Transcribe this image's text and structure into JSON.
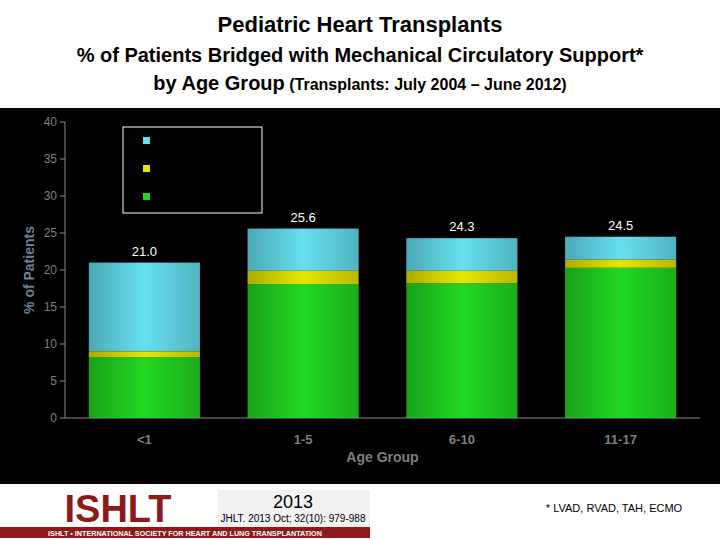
{
  "chart_data": {
    "type": "bar",
    "stacked": true,
    "title": "Pediatric Heart Transplants",
    "subtitle": [
      "% of Patients Bridged with Mechanical Circulatory Support*",
      "by Age Group",
      "(Transplants: July 2004 – June 2012)"
    ],
    "x_label": "Age Group",
    "y_label": "% of Patients",
    "categories": [
      "<1",
      "1-5",
      "6-10",
      "11-17"
    ],
    "series": [
      {
        "color": "#22d822",
        "values": [
          8.2,
          18.1,
          18.2,
          20.3
        ]
      },
      {
        "color": "#e6e600",
        "values": [
          0.8,
          1.8,
          1.7,
          1.1
        ]
      },
      {
        "color": "#66e0f0",
        "values": [
          12.0,
          5.7,
          4.4,
          3.1
        ]
      }
    ],
    "totals": [
      21.0,
      25.6,
      24.3,
      24.5
    ],
    "total_labels": [
      "21.0",
      "25.6",
      "24.3",
      "24.5"
    ],
    "ylim": [
      0,
      40
    ],
    "yticks": [
      0,
      5,
      10,
      15,
      20,
      25,
      30,
      35,
      40
    ],
    "grid": false,
    "legend": "upper-left"
  },
  "footer": {
    "logo": "ISHLT",
    "logo_subtitle": "ISHLT • INTERNATIONAL SOCIETY FOR HEART AND LUNG TRANSPLANTATION",
    "year": "2013",
    "citation": "JHLT. 2013 Oct; 32(10): 979-988",
    "footnote": "* LVAD, RVAD, TAH, ECMO"
  }
}
